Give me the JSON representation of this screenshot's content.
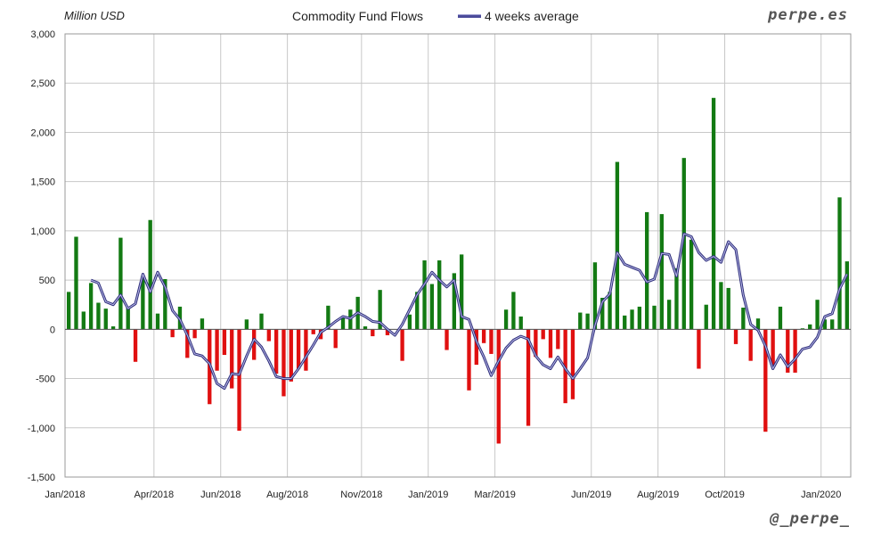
{
  "header": {
    "unit_label": "Million USD",
    "title": "Commodity Fund Flows",
    "legend_label": "4 weeks average",
    "brand": "perpe.es",
    "handle": "@_perpe_"
  },
  "colors": {
    "positive": "#137a13",
    "negative": "#e01010",
    "average_line": "#4b4b9a",
    "grid": "#c8c8c8"
  },
  "chart_data": {
    "type": "bar",
    "title": "Commodity Fund Flows",
    "ylabel": "Million USD",
    "xlabel": "",
    "ylim": [
      -1500,
      3000
    ],
    "y_ticks": [
      "3,000",
      "2,500",
      "2,000",
      "1,500",
      "1,000",
      "500",
      "0",
      "-500",
      "-1,000",
      "-1,500"
    ],
    "y_tick_values": [
      3000,
      2500,
      2000,
      1500,
      1000,
      500,
      0,
      -500,
      -1000,
      -1500
    ],
    "x_tick_labels": [
      "Jan/2018",
      "Apr/2018",
      "Jun/2018",
      "Aug/2018",
      "Nov/2018",
      "Jan/2019",
      "Mar/2019",
      "Jun/2019",
      "Aug/2019",
      "Oct/2019",
      "Jan/2020"
    ],
    "x_tick_weeks": [
      0,
      12,
      21,
      30,
      40,
      49,
      58,
      71,
      80,
      89,
      102
    ],
    "grid": true,
    "legend_position": "top",
    "series": [
      {
        "values": [
          380,
          940,
          180,
          470,
          270,
          210,
          30,
          930,
          220,
          -330,
          540,
          1110,
          160,
          510,
          -80,
          230,
          -290,
          -90,
          110,
          -760,
          -420,
          -260,
          -600,
          -1030,
          100,
          -310,
          160,
          -120,
          -450,
          -680,
          -530,
          -400,
          -420,
          -50,
          -100,
          240,
          -190,
          130,
          200,
          330,
          30,
          -70,
          400,
          -60,
          0,
          -320,
          150,
          380,
          700,
          460,
          700,
          -210,
          570,
          760,
          -620,
          -360,
          -140,
          -250,
          -1160,
          200,
          380,
          130,
          -980,
          -280,
          -100,
          -290,
          -200,
          -750,
          -710,
          170,
          160,
          680,
          320,
          380,
          1700,
          140,
          200,
          230,
          1190,
          240,
          1170,
          300,
          620,
          1740,
          910,
          -400,
          250,
          2350,
          480,
          420,
          -150,
          220,
          -320,
          110,
          -1040,
          -380,
          230,
          -440,
          -440,
          10,
          50,
          300,
          100,
          100,
          1340,
          690
        ]
      },
      {
        "name": "4 weeks average",
        "values": [
          null,
          null,
          null,
          500,
          470,
          280,
          250,
          350,
          210,
          260,
          560,
          380,
          580,
          430,
          190,
          100,
          -60,
          -250,
          -270,
          -350,
          -550,
          -600,
          -450,
          -460,
          -270,
          -100,
          -180,
          -320,
          -480,
          -500,
          -500,
          -400,
          -280,
          -160,
          -30,
          20,
          80,
          130,
          110,
          170,
          130,
          80,
          70,
          0,
          -60,
          50,
          200,
          350,
          460,
          580,
          500,
          430,
          500,
          130,
          100,
          -120,
          -280,
          -470,
          -320,
          -190,
          -110,
          -70,
          -100,
          -270,
          -360,
          -400,
          -280,
          -400,
          -500,
          -400,
          -290,
          40,
          280,
          360,
          780,
          660,
          630,
          600,
          480,
          510,
          770,
          760,
          540,
          970,
          940,
          780,
          700,
          740,
          680,
          890,
          810,
          350,
          50,
          -10,
          -170,
          -400,
          -260,
          -380,
          -300,
          -200,
          -180,
          -80,
          130,
          160,
          410,
          560
        ]
      }
    ]
  }
}
